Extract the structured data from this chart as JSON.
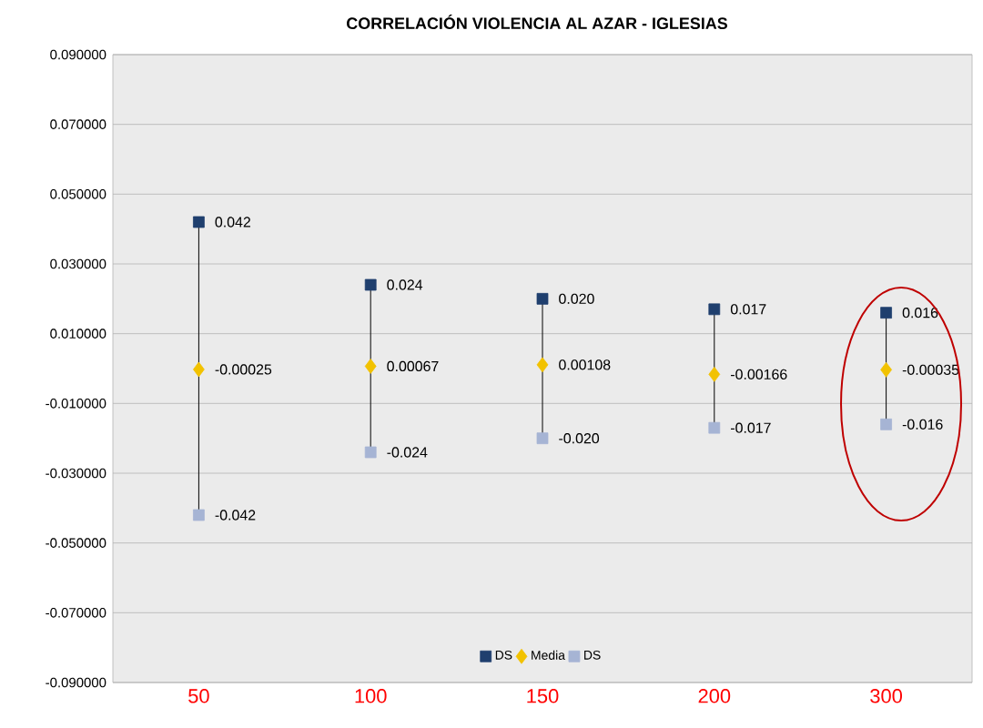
{
  "chart_data": {
    "type": "scatter",
    "title": "CORRELACIÓN VIOLENCIA AL AZAR - IGLESIAS",
    "categories": [
      "50",
      "100",
      "150",
      "200",
      "300"
    ],
    "series": [
      {
        "name": "DS",
        "color": "#1f3f6e",
        "marker": "square",
        "values": [
          0.042,
          0.024,
          0.02,
          0.017,
          0.016
        ],
        "value_labels": [
          "0.042",
          "0.024",
          "0.020",
          "0.017",
          "0.016"
        ]
      },
      {
        "name": "Media",
        "color": "#f2c200",
        "marker": "diamond",
        "values": [
          -0.00025,
          0.00067,
          0.00108,
          -0.00166,
          -0.00035
        ],
        "value_labels": [
          "-0.00025",
          "0.00067",
          "0.00108",
          "-0.00166",
          "-0.00035"
        ]
      },
      {
        "name": "DS",
        "color": "#a6b4d4",
        "marker": "square",
        "values": [
          -0.042,
          -0.024,
          -0.02,
          -0.017,
          -0.016
        ],
        "value_labels": [
          "-0.042",
          "-0.024",
          "-0.020",
          "-0.017",
          "-0.016"
        ]
      }
    ],
    "ylim": [
      -0.09,
      0.09
    ],
    "yticks": [
      {
        "value": -0.09,
        "label": "-0.090000"
      },
      {
        "value": -0.07,
        "label": "-0.070000"
      },
      {
        "value": -0.05,
        "label": "-0.050000"
      },
      {
        "value": -0.03,
        "label": "-0.030000"
      },
      {
        "value": -0.01,
        "label": "-0.010000"
      },
      {
        "value": 0.01,
        "label": "0.010000"
      },
      {
        "value": 0.03,
        "label": "0.030000"
      },
      {
        "value": 0.05,
        "label": "0.050000"
      },
      {
        "value": 0.07,
        "label": "0.070000"
      },
      {
        "value": 0.09,
        "label": "0.090000"
      }
    ],
    "grid": "y",
    "legend": "bottom"
  }
}
